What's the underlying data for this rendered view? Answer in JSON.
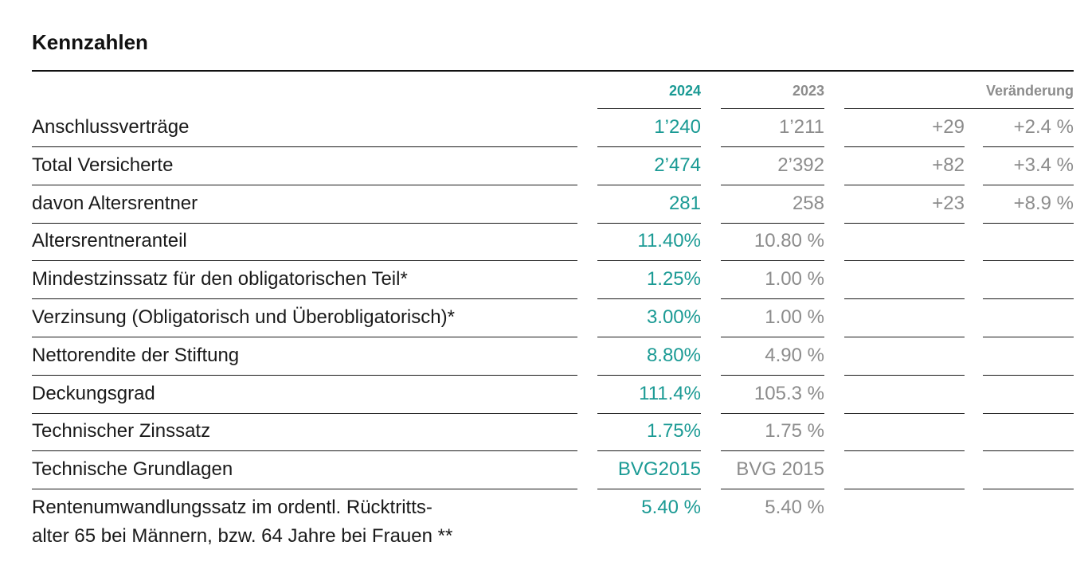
{
  "title": "Kennzahlen",
  "headers": {
    "y2024": "2024",
    "y2023": "2023",
    "change": "Veränderung"
  },
  "rows": [
    {
      "label": "Anschlussverträge",
      "v2024": "1’240",
      "v2023": "1’211",
      "chg_abs": "+29",
      "chg_pct": "+2.4 %"
    },
    {
      "label": "Total Versicherte",
      "v2024": "2’474",
      "v2023": "2’392",
      "chg_abs": "+82",
      "chg_pct": "+3.4 %"
    },
    {
      "label": "davon Altersrentner",
      "v2024": "281",
      "v2023": "258",
      "chg_abs": "+23",
      "chg_pct": "+8.9 %"
    },
    {
      "label": "Altersrentneranteil",
      "v2024": "11.40%",
      "v2023": "10.80 %",
      "chg_abs": "",
      "chg_pct": ""
    },
    {
      "label": "Mindestzinssatz für den obligatorischen Teil*",
      "v2024": "1.25%",
      "v2023": "1.00 %",
      "chg_abs": "",
      "chg_pct": ""
    },
    {
      "label": "Verzinsung (Obligatorisch und Überobligatorisch)*",
      "v2024": "3.00%",
      "v2023": "1.00 %",
      "chg_abs": "",
      "chg_pct": ""
    },
    {
      "label": "Nettorendite der Stiftung",
      "v2024": "8.80%",
      "v2023": "4.90 %",
      "chg_abs": "",
      "chg_pct": ""
    },
    {
      "label": "Deckungsgrad",
      "v2024": "111.4%",
      "v2023": "105.3 %",
      "chg_abs": "",
      "chg_pct": ""
    },
    {
      "label": "Technischer Zinssatz",
      "v2024": "1.75%",
      "v2023": "1.75 %",
      "chg_abs": "",
      "chg_pct": ""
    },
    {
      "label": "Technische Grundlagen",
      "v2024": "BVG2015",
      "v2023": "BVG 2015",
      "chg_abs": "",
      "chg_pct": ""
    }
  ],
  "last_row": {
    "label_line1": "Rentenumwandlungssatz im ordentl. Rücktritts-",
    "label_line2": "alter 65 bei Männern, bzw. 64 Jahre bei Frauen **",
    "v2024": "5.40 %",
    "v2023": "5.40 %"
  }
}
